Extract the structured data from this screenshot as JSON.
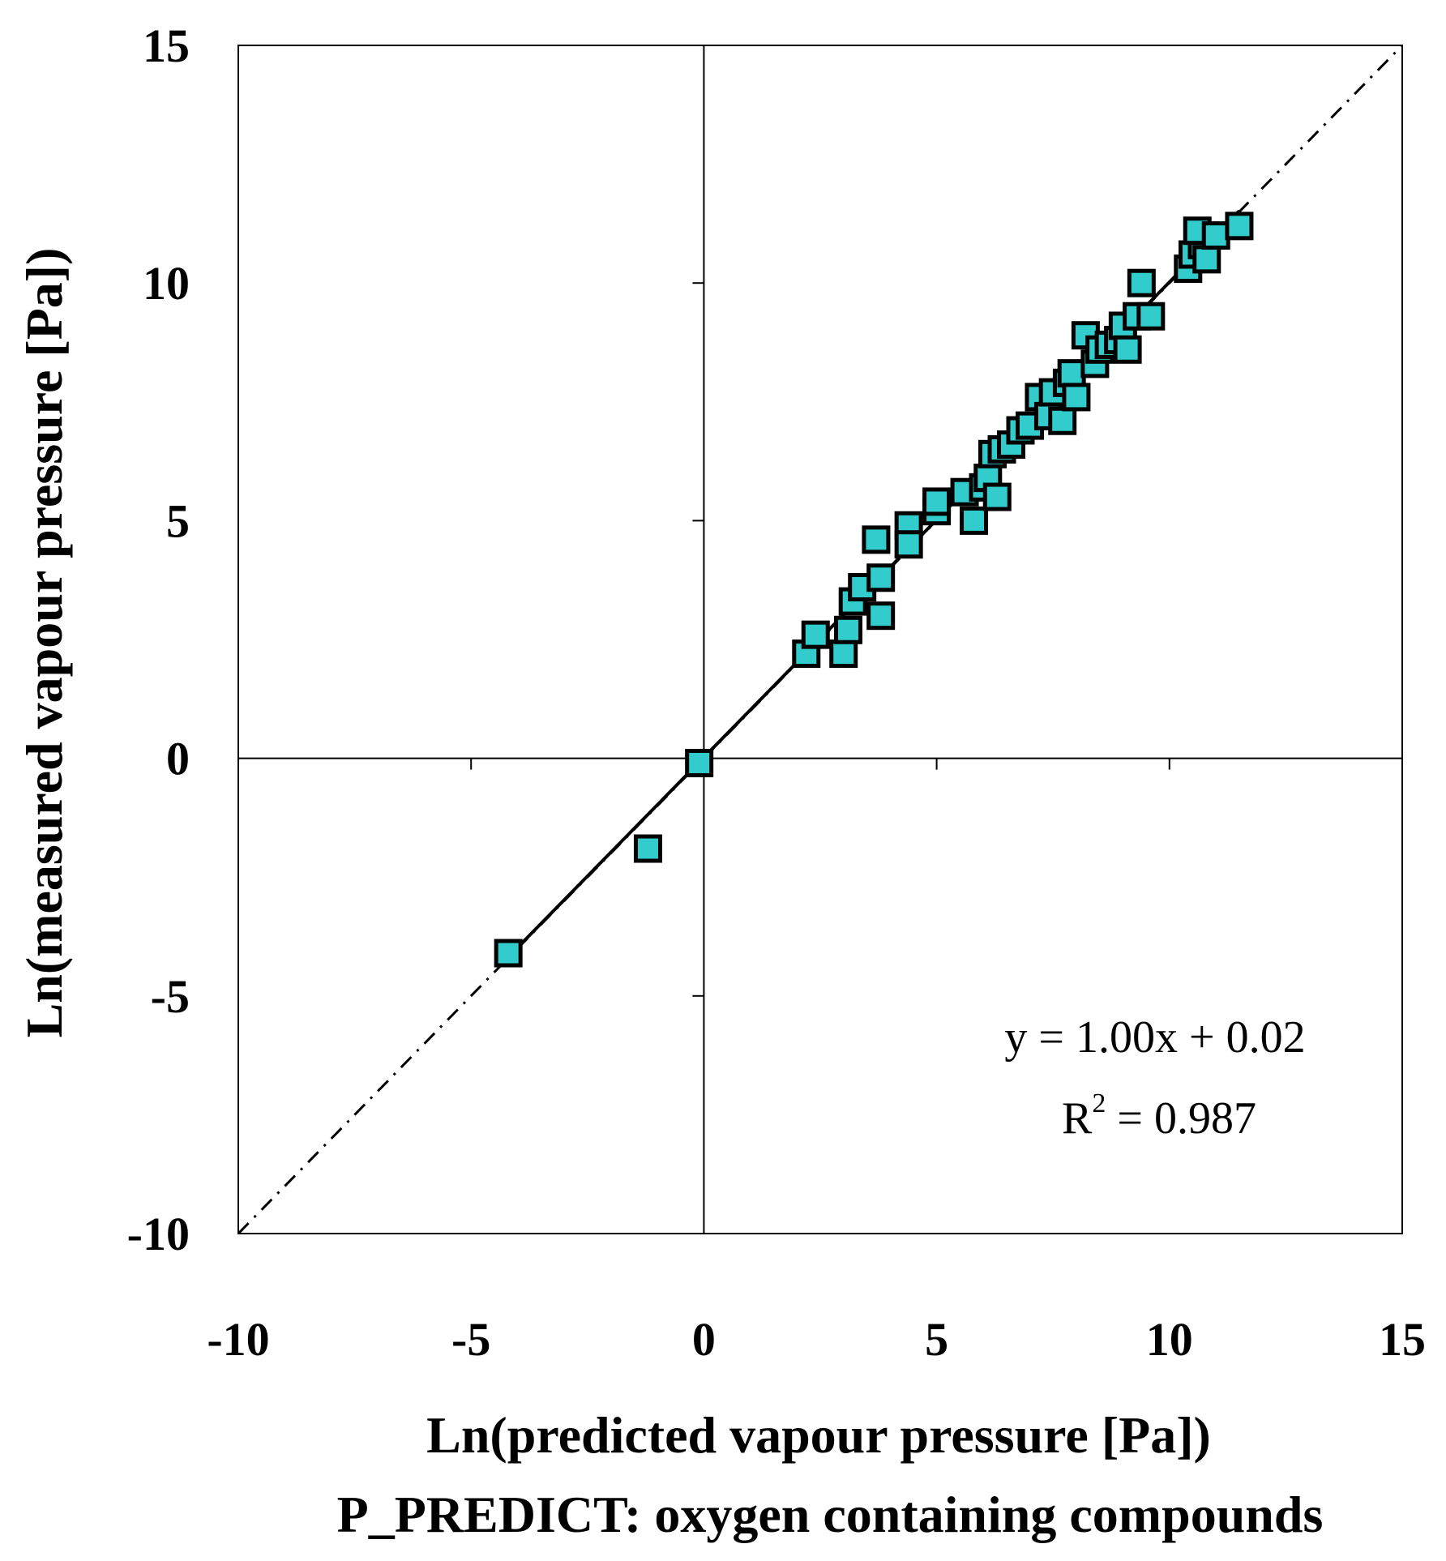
{
  "chart_data": {
    "type": "scatter",
    "xlabel": "Ln(predicted vapour pressure [Pa])",
    "subtitle": "P_PREDICT: oxygen containing compounds",
    "ylabel": "Ln(measured vapour pressure [Pa])",
    "xlim": [
      -10,
      15
    ],
    "ylim": [
      -10,
      15
    ],
    "x_ticks": [
      -10,
      -5,
      0,
      5,
      10,
      15
    ],
    "y_ticks": [
      -10,
      -5,
      0,
      5,
      10,
      15
    ],
    "x_tick_labels": [
      "-10",
      "-5",
      "0",
      "5",
      "10",
      "15"
    ],
    "y_tick_labels": [
      "-10",
      "-5",
      "0",
      "5",
      "10",
      "15"
    ],
    "marker_color": "#33cccc",
    "marker_edge_color": "#000000",
    "trendline": {
      "slope": 1.0,
      "intercept": 0.02,
      "x_range": [
        -4.2,
        11.5
      ]
    },
    "reference_line": {
      "slope": 1,
      "intercept": 0,
      "style": "dash-dot"
    },
    "equation_label": "y = 1.00x + 0.02",
    "r2_label_prefix": "R",
    "r2_label_sup": "2",
    "r2_label_value": " = 0.987",
    "series": [
      {
        "name": "oxygen containing compounds",
        "points": [
          [
            -4.2,
            -4.1
          ],
          [
            -1.2,
            -1.9
          ],
          [
            -0.1,
            -0.1
          ],
          [
            2.2,
            2.2
          ],
          [
            2.4,
            2.6
          ],
          [
            3.0,
            2.2
          ],
          [
            3.1,
            2.7
          ],
          [
            3.2,
            3.3
          ],
          [
            3.4,
            3.6
          ],
          [
            3.8,
            3.8
          ],
          [
            3.8,
            3.0
          ],
          [
            3.7,
            4.6
          ],
          [
            4.4,
            4.9
          ],
          [
            4.4,
            4.5
          ],
          [
            5.0,
            5.2
          ],
          [
            5.0,
            5.4
          ],
          [
            5.6,
            5.6
          ],
          [
            5.8,
            5.0
          ],
          [
            6.0,
            5.7
          ],
          [
            6.1,
            5.9
          ],
          [
            6.2,
            6.4
          ],
          [
            6.4,
            6.5
          ],
          [
            6.3,
            5.5
          ],
          [
            6.6,
            6.6
          ],
          [
            6.8,
            6.9
          ],
          [
            7.0,
            7.0
          ],
          [
            7.2,
            7.6
          ],
          [
            7.4,
            7.2
          ],
          [
            7.5,
            7.7
          ],
          [
            7.7,
            7.1
          ],
          [
            7.8,
            7.9
          ],
          [
            7.9,
            8.1
          ],
          [
            8.0,
            7.6
          ],
          [
            8.2,
            8.9
          ],
          [
            8.4,
            8.3
          ],
          [
            8.5,
            8.6
          ],
          [
            8.7,
            8.7
          ],
          [
            8.9,
            8.8
          ],
          [
            9.0,
            9.1
          ],
          [
            9.1,
            8.6
          ],
          [
            9.4,
            10.0
          ],
          [
            9.3,
            9.3
          ],
          [
            9.6,
            9.3
          ],
          [
            10.4,
            10.3
          ],
          [
            10.5,
            10.6
          ],
          [
            10.7,
            10.8
          ],
          [
            10.6,
            11.1
          ],
          [
            10.8,
            10.5
          ],
          [
            11.0,
            11.0
          ],
          [
            11.5,
            11.2
          ]
        ]
      }
    ]
  }
}
